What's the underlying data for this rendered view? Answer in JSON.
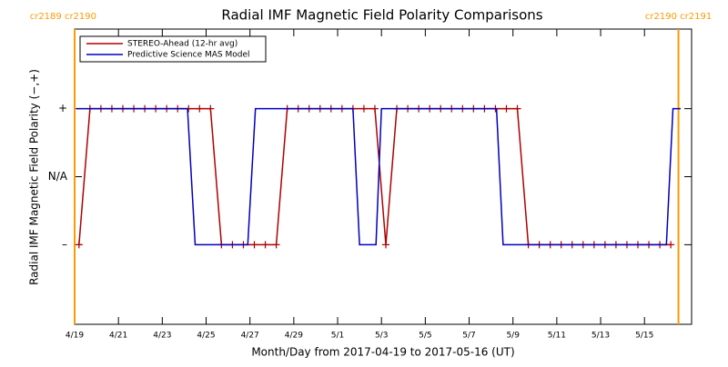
{
  "chart_data": {
    "type": "line",
    "title": "Radial IMF Magnetic Field Polarity Comparisons",
    "xlabel": "Month/Day from 2017-04-19 to 2017-05-16 (UT)",
    "ylabel": "Radial IMF Magnetic Field Polarity (−,+)",
    "xlim": [
      0,
      28.15
    ],
    "xticks": [
      {
        "value": 0,
        "label": "4/19"
      },
      {
        "value": 2,
        "label": "4/21"
      },
      {
        "value": 4,
        "label": "4/23"
      },
      {
        "value": 6,
        "label": "4/25"
      },
      {
        "value": 8,
        "label": "4/27"
      },
      {
        "value": 10,
        "label": "4/29"
      },
      {
        "value": 12,
        "label": "5/1"
      },
      {
        "value": 14,
        "label": "5/3"
      },
      {
        "value": 16,
        "label": "5/5"
      },
      {
        "value": 18,
        "label": "5/7"
      },
      {
        "value": 20,
        "label": "5/9"
      },
      {
        "value": 22,
        "label": "5/11"
      },
      {
        "value": 24,
        "label": "5/13"
      },
      {
        "value": 26,
        "label": "5/15"
      }
    ],
    "ylim": [
      -2.17,
      2.17
    ],
    "yticks": [
      {
        "value": 1,
        "label": "+"
      },
      {
        "value": 0,
        "label": "N/A"
      },
      {
        "value": -1,
        "label": "–"
      }
    ],
    "markers": [
      {
        "x": 0,
        "label": "cr2189 cr2190"
      },
      {
        "x": 27.55,
        "label": "cr2190 cr2191"
      }
    ],
    "marker_color": "#ff9900",
    "series": [
      {
        "name": "STEREO-Ahead (12-hr avg)",
        "color": "#b00000",
        "symbol": "+",
        "x": [
          0.2,
          0.7,
          1.2,
          1.7,
          2.2,
          2.7,
          3.2,
          3.7,
          4.2,
          4.7,
          5.2,
          5.7,
          6.2,
          6.7,
          7.2,
          7.7,
          8.2,
          8.7,
          9.2,
          9.7,
          10.2,
          10.7,
          11.2,
          11.7,
          12.2,
          12.7,
          13.2,
          13.7,
          14.2,
          14.7,
          15.2,
          15.7,
          16.2,
          16.7,
          17.2,
          17.7,
          18.2,
          18.7,
          19.2,
          19.7,
          20.2,
          20.7,
          21.2,
          21.7,
          22.2,
          22.7,
          23.2,
          23.7,
          24.2,
          24.7,
          25.2,
          25.7,
          26.2,
          26.7,
          27.2
        ],
        "values": [
          -1,
          1,
          1,
          1,
          1,
          1,
          1,
          1,
          1,
          1,
          1,
          1,
          1,
          -1,
          -1,
          -1,
          -1,
          -1,
          -1,
          1,
          1,
          1,
          1,
          1,
          1,
          1,
          1,
          1,
          -1,
          1,
          1,
          1,
          1,
          1,
          1,
          1,
          1,
          1,
          1,
          1,
          1,
          -1,
          -1,
          -1,
          -1,
          -1,
          -1,
          -1,
          -1,
          -1,
          -1,
          -1,
          -1,
          -1,
          -1
        ]
      },
      {
        "name": "Predictive Science MAS Model",
        "color": "#0000c0",
        "x": [
          0.08,
          5.15,
          5.5,
          7.9,
          8.25,
          12.7,
          13.0,
          13.75,
          14.0,
          19.25,
          19.55,
          27.0,
          27.3,
          27.65
        ],
        "values": [
          1,
          1,
          -1,
          -1,
          1,
          1,
          -1,
          -1,
          1,
          1,
          -1,
          -1,
          1,
          1
        ]
      }
    ]
  }
}
